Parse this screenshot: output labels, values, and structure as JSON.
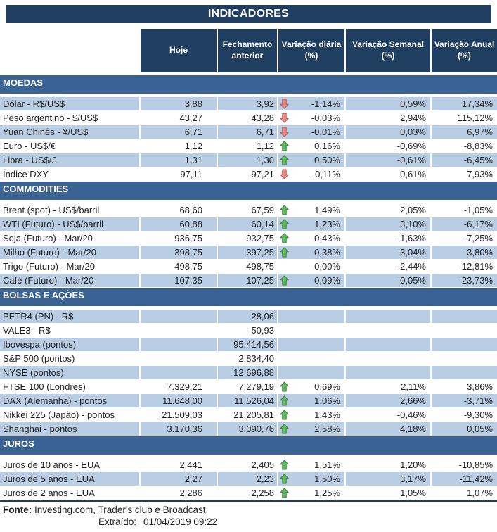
{
  "title": "INDICADORES",
  "columns": [
    "Hoje",
    "Fechamento anterior",
    "Variação diária (%)",
    "Variação Semanal (%)",
    "Variação Anual (%)"
  ],
  "sections": [
    {
      "name": "MOEDAS",
      "first_row_shaded": true,
      "rows": [
        {
          "label": "Dólar - R$/US$",
          "hoje": "3,88",
          "prev": "3,92",
          "arrow": "down",
          "daily": "-1,14%",
          "weekly": "0,59%",
          "annual": "17,34%"
        },
        {
          "label": "Peso argentino - $/US$",
          "hoje": "43,27",
          "prev": "43,28",
          "arrow": "down",
          "daily": "-0,03%",
          "weekly": "2,94%",
          "annual": "115,12%"
        },
        {
          "label": "Yuan Chinês - ¥/US$",
          "hoje": "6,71",
          "prev": "6,71",
          "arrow": "down",
          "daily": "-0,01%",
          "weekly": "0,03%",
          "annual": "6,97%"
        },
        {
          "label": "Euro - US$/€",
          "hoje": "1,12",
          "prev": "1,12",
          "arrow": "up",
          "daily": "0,16%",
          "weekly": "-0,69%",
          "annual": "-8,83%"
        },
        {
          "label": "Libra - US$/£",
          "hoje": "1,31",
          "prev": "1,30",
          "arrow": "up",
          "daily": "0,50%",
          "weekly": "-0,61%",
          "annual": "-6,45%"
        },
        {
          "label": "Índice DXY",
          "hoje": "97,11",
          "prev": "97,21",
          "arrow": "down",
          "daily": "-0,11%",
          "weekly": "0,61%",
          "annual": "7,93%"
        }
      ]
    },
    {
      "name": "COMMODITIES",
      "first_row_shaded": false,
      "rows": [
        {
          "label": "Brent (spot) - US$/barril",
          "hoje": "68,60",
          "prev": "67,59",
          "arrow": "up",
          "daily": "1,49%",
          "weekly": "2,05%",
          "annual": "-1,05%"
        },
        {
          "label": "WTI (Futuro) - US$/barril",
          "hoje": "60,88",
          "prev": "60,14",
          "arrow": "up",
          "daily": "1,23%",
          "weekly": "3,10%",
          "annual": "-6,17%"
        },
        {
          "label": "Soja (Futuro) - Mar/20",
          "hoje": "936,75",
          "prev": "932,75",
          "arrow": "up",
          "daily": "0,43%",
          "weekly": "-1,63%",
          "annual": "-7,25%"
        },
        {
          "label": "Milho (Futuro) - Mar/20",
          "hoje": "398,75",
          "prev": "397,25",
          "arrow": "up",
          "daily": "0,38%",
          "weekly": "-3,04%",
          "annual": "-3,80%"
        },
        {
          "label": "Trigo (Futuro) - Mar/20",
          "hoje": "498,75",
          "prev": "498,75",
          "arrow": "none",
          "daily": "0,00%",
          "weekly": "-2,44%",
          "annual": "-12,81%"
        },
        {
          "label": "Café (Futuro) - Mar/20",
          "hoje": "107,35",
          "prev": "107,25",
          "arrow": "up",
          "daily": "0,09%",
          "weekly": "-0,05%",
          "annual": "-23,73%"
        }
      ]
    },
    {
      "name": "BOLSAS E AÇÕES",
      "first_row_shaded": true,
      "rows": [
        {
          "label": "PETR4 (PN) - R$",
          "hoje": "",
          "prev": "28,06",
          "arrow": "none",
          "daily": "",
          "weekly": "",
          "annual": ""
        },
        {
          "label": "VALE3 - R$",
          "hoje": "",
          "prev": "50,93",
          "arrow": "none",
          "daily": "",
          "weekly": "",
          "annual": ""
        },
        {
          "label": "Ibovespa (pontos)",
          "hoje": "",
          "prev": "95.414,56",
          "arrow": "none",
          "daily": "",
          "weekly": "",
          "annual": ""
        },
        {
          "label": "S&P 500 (pontos)",
          "hoje": "",
          "prev": "2.834,40",
          "arrow": "none",
          "daily": "",
          "weekly": "",
          "annual": ""
        },
        {
          "label": "NYSE (pontos)",
          "hoje": "",
          "prev": "12.696,88",
          "arrow": "none",
          "daily": "",
          "weekly": "",
          "annual": ""
        },
        {
          "label": "FTSE 100 (Londres)",
          "hoje": "7.329,21",
          "prev": "7.279,19",
          "arrow": "up",
          "daily": "0,69%",
          "weekly": "2,11%",
          "annual": "3,86%"
        },
        {
          "label": "DAX (Alemanha) - pontos",
          "hoje": "11.648,00",
          "prev": "11.526,04",
          "arrow": "up",
          "daily": "1,06%",
          "weekly": "2,66%",
          "annual": "-3,71%"
        },
        {
          "label": "Nikkei 225 (Japão) - pontos",
          "hoje": "21.509,03",
          "prev": "21.205,81",
          "arrow": "up",
          "daily": "1,43%",
          "weekly": "-0,46%",
          "annual": "-9,30%"
        },
        {
          "label": "Shanghai - pontos",
          "hoje": "3.170,36",
          "prev": "3.090,76",
          "arrow": "up",
          "daily": "2,58%",
          "weekly": "4,18%",
          "annual": "0,05%"
        }
      ]
    },
    {
      "name": "JUROS",
      "first_row_shaded": false,
      "rows": [
        {
          "label": "Juros de 10 anos - EUA",
          "hoje": "2,441",
          "prev": "2,405",
          "arrow": "up",
          "daily": "1,51%",
          "weekly": "1,20%",
          "annual": "-10,85%"
        },
        {
          "label": "Juros de 5 anos - EUA",
          "hoje": "2,27",
          "prev": "2,23",
          "arrow": "up",
          "daily": "1,50%",
          "weekly": "3,17%",
          "annual": "-11,42%"
        },
        {
          "label": "Juros de 2 anos - EUA",
          "hoje": "2,286",
          "prev": "2,258",
          "arrow": "up",
          "daily": "1,25%",
          "weekly": "1,05%",
          "annual": "1,07%"
        }
      ]
    }
  ],
  "footer": {
    "fonte_label": "Fonte:",
    "fonte_text": "Investing.com, Trader's club e Broadcast.",
    "extraido_label": "Extraído:",
    "extraido_value": "01/04/2019 09:22"
  },
  "colors": {
    "navy": "#203E5F",
    "section_blue": "#3A6292",
    "row_blue": "#B9CDE4",
    "arrow_up": "#5FBE5F",
    "arrow_up_border": "#3C7A3C",
    "arrow_down": "#E98C8C",
    "arrow_down_border": "#B85450",
    "text": "#1F1F1F"
  }
}
